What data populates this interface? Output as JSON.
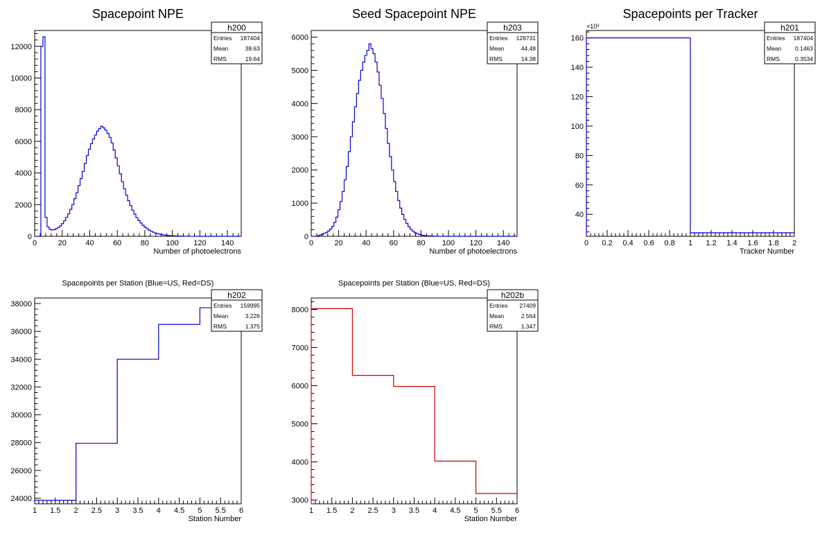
{
  "colors": {
    "blue": "#0000cc",
    "red": "#cc0000",
    "frame": "#000000",
    "background": "#ffffff"
  },
  "chart_data": [
    {
      "id": "h200",
      "type": "histogram",
      "title": "Spacepoint NPE",
      "title_size": "large",
      "xlabel": "Number of photoelectrons",
      "ylabel": "",
      "xlim": [
        0,
        150
      ],
      "ylim": [
        0,
        13000
      ],
      "xticks": [
        0,
        20,
        40,
        60,
        80,
        100,
        120,
        140
      ],
      "yticks": [
        0,
        2000,
        4000,
        6000,
        8000,
        10000,
        12000
      ],
      "color": "#0000cc",
      "bin_width": 1.5,
      "values": [
        0,
        0,
        0,
        12000,
        12600,
        1200,
        600,
        450,
        400,
        420,
        480,
        550,
        650,
        800,
        980,
        1200,
        1420,
        1700,
        2000,
        2380,
        2750,
        3200,
        3650,
        4100,
        4600,
        5100,
        5500,
        5850,
        6150,
        6400,
        6650,
        6800,
        6950,
        6850,
        6700,
        6500,
        6250,
        5900,
        5450,
        4950,
        4450,
        3950,
        3450,
        3000,
        2600,
        2250,
        1950,
        1650,
        1400,
        1180,
        1000,
        840,
        700,
        580,
        480,
        390,
        320,
        260,
        210,
        170,
        140,
        110,
        90,
        70,
        55,
        45,
        36,
        28,
        22,
        17,
        13,
        10,
        8,
        6,
        4,
        3,
        2,
        2,
        1,
        1,
        0,
        0,
        0,
        0,
        0,
        0,
        0,
        0,
        0,
        0,
        0,
        0,
        0,
        0,
        0,
        0,
        0,
        0,
        0,
        0
      ],
      "stats": {
        "name": "h200",
        "rows": [
          [
            "Entries",
            "187404"
          ],
          [
            "Mean",
            "38.63"
          ],
          [
            "RMS",
            "19.64"
          ]
        ]
      }
    },
    {
      "id": "h203",
      "type": "histogram",
      "title": "Seed Spacepoint NPE",
      "title_size": "large",
      "xlabel": "Number of photoelectrons",
      "ylabel": "",
      "xlim": [
        0,
        150
      ],
      "ylim": [
        0,
        6200
      ],
      "xticks": [
        0,
        20,
        40,
        60,
        80,
        100,
        120,
        140
      ],
      "yticks": [
        0,
        1000,
        2000,
        3000,
        4000,
        5000,
        6000
      ],
      "color": "#0000cc",
      "bin_width": 1.5,
      "values": [
        0,
        0,
        0,
        20,
        40,
        60,
        90,
        120,
        160,
        220,
        300,
        420,
        580,
        800,
        1050,
        1350,
        1700,
        2100,
        2550,
        3000,
        3450,
        3900,
        4300,
        4700,
        5000,
        5250,
        5450,
        5600,
        5800,
        5650,
        5500,
        5250,
        4950,
        4550,
        4150,
        3700,
        3250,
        2800,
        2400,
        2000,
        1650,
        1350,
        1080,
        850,
        660,
        510,
        390,
        290,
        210,
        155,
        110,
        80,
        57,
        40,
        28,
        20,
        14,
        10,
        7,
        5,
        3,
        2,
        1,
        1,
        0,
        0,
        0,
        0,
        0,
        0,
        0,
        0,
        0,
        0,
        0,
        0,
        0,
        0,
        0,
        0,
        0,
        0,
        0,
        0,
        0,
        0,
        0,
        0,
        0,
        0,
        0,
        0,
        0,
        0,
        0,
        0,
        0,
        0,
        0,
        0
      ],
      "stats": {
        "name": "h203",
        "rows": [
          [
            "Entries",
            "128731"
          ],
          [
            "Mean",
            "44.48"
          ],
          [
            "RMS",
            "14.38"
          ]
        ]
      }
    },
    {
      "id": "h201",
      "type": "histogram",
      "title": "Spacepoints per Tracker",
      "title_size": "large",
      "xlabel": "Tracker Number",
      "ylabel": "",
      "xlim": [
        0,
        2
      ],
      "ylim": [
        25,
        165
      ],
      "xticks": [
        0,
        0.2,
        0.4,
        0.6,
        0.8,
        1,
        1.2,
        1.4,
        1.6,
        1.8,
        2
      ],
      "yticks": [
        40,
        60,
        80,
        100,
        120,
        140,
        160
      ],
      "y_multiplier_label": "×10³",
      "color": "#0000cc",
      "bin_edges": [
        0,
        1,
        2
      ],
      "values": [
        160,
        27.4
      ],
      "stats": {
        "name": "h201",
        "rows": [
          [
            "Entries",
            "187404"
          ],
          [
            "Mean",
            "0.1463"
          ],
          [
            "RMS",
            "0.3534"
          ]
        ]
      }
    },
    {
      "id": "h202",
      "type": "histogram",
      "title": "Spacepoints per Station (Blue=US, Red=DS)",
      "title_size": "small",
      "xlabel": "Station Number",
      "ylabel": "",
      "xlim": [
        1,
        6
      ],
      "ylim": [
        23600,
        38400
      ],
      "xticks": [
        1,
        1.5,
        2,
        2.5,
        3,
        3.5,
        4,
        4.5,
        5,
        5.5,
        6
      ],
      "yticks": [
        24000,
        26000,
        28000,
        30000,
        32000,
        34000,
        36000,
        38000
      ],
      "color": "#0000cc",
      "bin_edges": [
        1,
        2,
        3,
        4,
        5,
        6
      ],
      "values": [
        23850,
        27950,
        34000,
        36500,
        37700
      ],
      "stats": {
        "name": "h202",
        "rows": [
          [
            "Entries",
            "159995"
          ],
          [
            "Mean",
            "3.226"
          ],
          [
            "RMS",
            "1.375"
          ]
        ]
      }
    },
    {
      "id": "h202b",
      "type": "histogram",
      "title": "Spacepoints per Station (Blue=US, Red=DS)",
      "title_size": "small",
      "xlabel": "Station Number",
      "ylabel": "",
      "xlim": [
        1,
        6
      ],
      "ylim": [
        2900,
        8300
      ],
      "xticks": [
        1,
        1.5,
        2,
        2.5,
        3,
        3.5,
        4,
        4.5,
        5,
        5.5,
        6
      ],
      "yticks": [
        3000,
        4000,
        5000,
        6000,
        7000,
        8000
      ],
      "color": "#cc0000",
      "bin_edges": [
        1,
        2,
        3,
        4,
        5,
        6
      ],
      "values": [
        8020,
        6270,
        5980,
        4020,
        3170
      ],
      "stats": {
        "name": "h202b",
        "rows": [
          [
            "Entries",
            "27409"
          ],
          [
            "Mean",
            "2.564"
          ],
          [
            "RMS",
            "1.347"
          ]
        ]
      }
    }
  ]
}
